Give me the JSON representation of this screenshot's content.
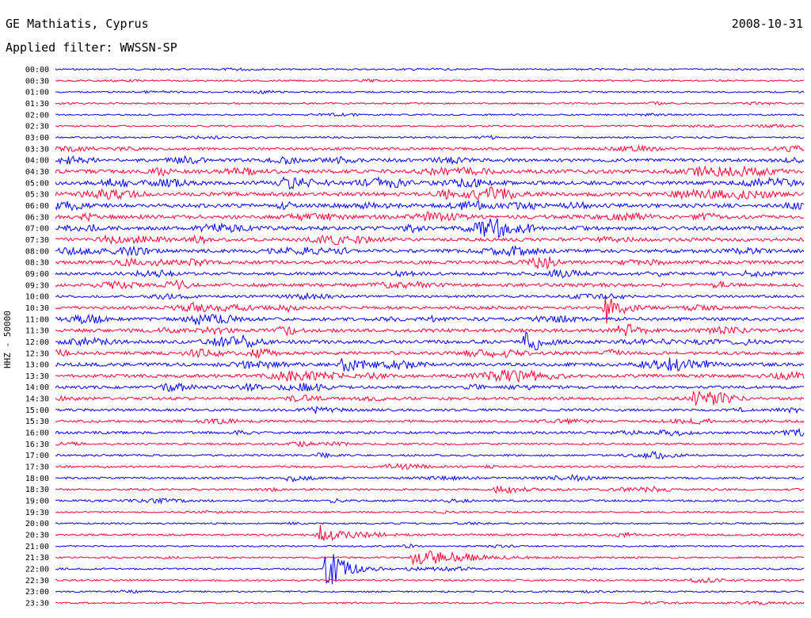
{
  "header": {
    "station": "GE Mathiatis, Cyprus",
    "date": "2008-10-31",
    "filter": "Applied filter: WWSSN-SP"
  },
  "colors": {
    "even_rows": "#0000ff",
    "odd_rows": "#ff0033"
  },
  "chart_data": {
    "type": "line",
    "title": "GE Mathiatis, Cyprus",
    "subtitle": "Applied filter: WWSSN-SP",
    "ylabel": "HHZ - 50000",
    "xlabel": "",
    "grid": false,
    "legend": "none",
    "row_labels": [
      "00:00",
      "00:30",
      "01:00",
      "01:30",
      "02:00",
      "02:30",
      "03:00",
      "03:30",
      "04:00",
      "04:30",
      "05:00",
      "05:30",
      "06:00",
      "06:30",
      "07:00",
      "07:30",
      "08:00",
      "08:30",
      "09:00",
      "09:30",
      "10:00",
      "10:30",
      "11:00",
      "11:30",
      "12:00",
      "12:30",
      "13:00",
      "13:30",
      "14:00",
      "14:30",
      "15:00",
      "15:30",
      "16:00",
      "16:30",
      "17:00",
      "17:30",
      "18:00",
      "18:30",
      "19:00",
      "19:30",
      "20:00",
      "20:30",
      "21:00",
      "21:30",
      "22:00",
      "22:30",
      "23:00",
      "23:30"
    ],
    "row_noise_level": [
      1,
      1,
      1,
      1,
      1,
      1,
      1.2,
      2,
      3,
      3.5,
      3.5,
      3.5,
      3.5,
      3.5,
      3.5,
      3,
      3,
      3,
      2.5,
      3,
      2,
      2.5,
      3,
      3,
      3,
      3,
      3,
      3,
      2.5,
      2.5,
      2,
      2,
      2,
      1.5,
      1.5,
      1.5,
      1.5,
      1.5,
      1.5,
      1,
      1,
      1.5,
      1,
      1,
      1.2,
      1.2,
      1,
      1
    ],
    "events": [
      {
        "row": "10:30",
        "minute": 22.0,
        "amplitude": 20,
        "duration": 0.5
      },
      {
        "row": "12:00",
        "minute": 18.8,
        "amplitude": 16,
        "duration": 0.5
      },
      {
        "row": "14:30",
        "minute": 25.5,
        "amplitude": 8,
        "duration": 0.4
      },
      {
        "row": "13:00",
        "minute": 11.5,
        "amplitude": 10,
        "duration": 0.6
      },
      {
        "row": "20:30",
        "minute": 10.6,
        "amplitude": 11,
        "duration": 0.8
      },
      {
        "row": "21:30",
        "minute": 14.3,
        "amplitude": 9,
        "duration": 2.0
      },
      {
        "row": "22:00",
        "minute": 10.8,
        "amplitude": 26,
        "duration": 0.7
      },
      {
        "row": "18:00",
        "minute": 9.3,
        "amplitude": 5,
        "duration": 0.5
      },
      {
        "row": "18:30",
        "minute": 17.6,
        "amplitude": 6,
        "duration": 0.8
      }
    ]
  }
}
